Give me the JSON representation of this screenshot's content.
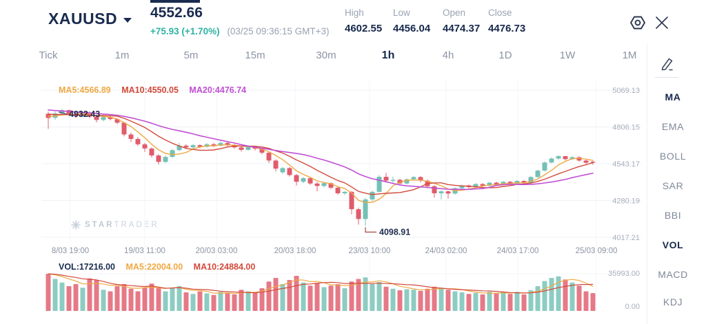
{
  "header": {
    "symbol": "XAUUSD",
    "price": "4552.66",
    "change": "+75.93 (+1.70%)",
    "timestamp": "(03/25 09:36:15 GMT+3)",
    "stats": [
      {
        "label": "High",
        "value": "4602.55"
      },
      {
        "label": "Low",
        "value": "4456.04"
      },
      {
        "label": "Open",
        "value": "4474.37"
      },
      {
        "label": "Close",
        "value": "4476.73"
      }
    ]
  },
  "timeframes": {
    "items": [
      "Tick",
      "1m",
      "5m",
      "15m",
      "30m",
      "1h",
      "4h",
      "1D",
      "1W",
      "1M"
    ],
    "selected": "1h"
  },
  "indicators": {
    "items": [
      "MA",
      "EMA",
      "BOLL",
      "SAR",
      "BBI",
      "VOL",
      "MACD",
      "KDJ"
    ],
    "selected": [
      "MA",
      "VOL"
    ]
  },
  "watermark": {
    "text_bold": "STAR",
    "text_light": "TRADER"
  },
  "chart_data": {
    "type": "candlestick",
    "symbol": "XAUUSD",
    "interval": "1h",
    "price_axis": {
      "labels": [
        "5069.13",
        "4806.15",
        "4543.17",
        "4280.19",
        "4017.21"
      ],
      "step": 262.98
    },
    "volume_axis": {
      "labels": [
        "35993.00",
        "0.00"
      ],
      "max": 35993
    },
    "x_axis": {
      "labels": [
        "8/03 19:00",
        "19/03 11:00",
        "20/03 03:00",
        "20/03 18:00",
        "23/03 10:00",
        "24/03 02:00",
        "24/03 17:00",
        "25/03 09:00"
      ]
    },
    "overlays": {
      "price_legend": [
        {
          "label": "MA5:4566.89",
          "color": "#efa843"
        },
        {
          "label": "MA10:4550.05",
          "color": "#d2493b"
        },
        {
          "label": "MA20:4476.74",
          "color": "#c14ed4"
        }
      ],
      "volume_legend": [
        {
          "label": "VOL:17216.00",
          "color": "#1a2b50"
        },
        {
          "label": "MA5:22004.00",
          "color": "#efa843"
        },
        {
          "label": "MA10:24884.00",
          "color": "#d2493b"
        }
      ]
    },
    "annotations": [
      {
        "text": "4932.43",
        "type": "high",
        "candle_index": 2
      },
      {
        "text": "4098.91",
        "type": "low",
        "candle_index": 46
      }
    ],
    "colors": {
      "up": "#74c1b5",
      "down": "#e05c6c",
      "ma5": "#efa843",
      "ma10": "#d2493b",
      "ma20": "#c14ed4"
    },
    "ma_warmup_slope": 6,
    "candles": [
      [
        4900,
        4915,
        4792,
        4870
      ],
      [
        4872,
        4916,
        4858,
        4902
      ],
      [
        4902,
        4932.43,
        4894,
        4926
      ],
      [
        4926,
        4930,
        4886,
        4898
      ],
      [
        4898,
        4908,
        4870,
        4884
      ],
      [
        4884,
        4914,
        4878,
        4908
      ],
      [
        4908,
        4918,
        4868,
        4880
      ],
      [
        4880,
        4890,
        4838,
        4856
      ],
      [
        4856,
        4882,
        4846,
        4876
      ],
      [
        4876,
        4884,
        4852,
        4862
      ],
      [
        4862,
        4870,
        4826,
        4836
      ],
      [
        4836,
        4842,
        4738,
        4752
      ],
      [
        4752,
        4766,
        4698,
        4720
      ],
      [
        4720,
        4734,
        4670,
        4682
      ],
      [
        4682,
        4692,
        4628,
        4652
      ],
      [
        4652,
        4660,
        4588,
        4602
      ],
      [
        4602,
        4612,
        4538,
        4556
      ],
      [
        4556,
        4602,
        4548,
        4592
      ],
      [
        4592,
        4648,
        4586,
        4640
      ],
      [
        4640,
        4692,
        4634,
        4672
      ],
      [
        4672,
        4682,
        4648,
        4660
      ],
      [
        4660,
        4684,
        4652,
        4676
      ],
      [
        4676,
        4682,
        4654,
        4664
      ],
      [
        4664,
        4690,
        4658,
        4682
      ],
      [
        4682,
        4692,
        4662,
        4672
      ],
      [
        4672,
        4702,
        4666,
        4692
      ],
      [
        4692,
        4698,
        4664,
        4676
      ],
      [
        4676,
        4684,
        4650,
        4660
      ],
      [
        4660,
        4668,
        4630,
        4642
      ],
      [
        4642,
        4672,
        4636,
        4664
      ],
      [
        4664,
        4670,
        4638,
        4650
      ],
      [
        4650,
        4656,
        4610,
        4622
      ],
      [
        4622,
        4630,
        4548,
        4566
      ],
      [
        4566,
        4574,
        4488,
        4508
      ],
      [
        4482,
        4520,
        4470,
        4512
      ],
      [
        4512,
        4520,
        4452,
        4462
      ],
      [
        4462,
        4470,
        4388,
        4414
      ],
      [
        4414,
        4448,
        4404,
        4440
      ],
      [
        4440,
        4446,
        4392,
        4402
      ],
      [
        4402,
        4412,
        4346,
        4384
      ],
      [
        4384,
        4410,
        4374,
        4404
      ],
      [
        4404,
        4410,
        4362,
        4372
      ],
      [
        4372,
        4378,
        4322,
        4332
      ],
      [
        4332,
        4348,
        4320,
        4342
      ],
      [
        4342,
        4348,
        4182,
        4218
      ],
      [
        4218,
        4230,
        4108,
        4148
      ],
      [
        4148,
        4300,
        4098.91,
        4288
      ],
      [
        4288,
        4350,
        4274,
        4342
      ],
      [
        4342,
        4462,
        4336,
        4450
      ],
      [
        4450,
        4478,
        4414,
        4422
      ],
      [
        4422,
        4450,
        4398,
        4428
      ],
      [
        4428,
        4436,
        4390,
        4402
      ],
      [
        4402,
        4438,
        4396,
        4432
      ],
      [
        4432,
        4456,
        4424,
        4448
      ],
      [
        4448,
        4454,
        4410,
        4422
      ],
      [
        4422,
        4430,
        4368,
        4382
      ],
      [
        4382,
        4390,
        4302,
        4332
      ],
      [
        4332,
        4352,
        4288,
        4346
      ],
      [
        4346,
        4352,
        4294,
        4330
      ],
      [
        4330,
        4374,
        4322,
        4368
      ],
      [
        4368,
        4394,
        4360,
        4388
      ],
      [
        4388,
        4394,
        4366,
        4376
      ],
      [
        4376,
        4404,
        4370,
        4398
      ],
      [
        4398,
        4404,
        4376,
        4386
      ],
      [
        4386,
        4414,
        4380,
        4408
      ],
      [
        4408,
        4414,
        4386,
        4396
      ],
      [
        4396,
        4420,
        4390,
        4414
      ],
      [
        4414,
        4420,
        4392,
        4400
      ],
      [
        4400,
        4426,
        4394,
        4420
      ],
      [
        4420,
        4426,
        4396,
        4406
      ],
      [
        4406,
        4454,
        4400,
        4448
      ],
      [
        4448,
        4500,
        4442,
        4494
      ],
      [
        4494,
        4560,
        4488,
        4552
      ],
      [
        4552,
        4588,
        4546,
        4580
      ],
      [
        4580,
        4602.55,
        4572,
        4598
      ],
      [
        4598,
        4598.5,
        4566,
        4576
      ],
      [
        4576,
        4596,
        4570,
        4590
      ],
      [
        4590,
        4596,
        4558,
        4566
      ],
      [
        4566,
        4572,
        4540,
        4550
      ],
      [
        4558,
        4564,
        4536,
        4552.66
      ]
    ],
    "volumes": [
      36000,
      31000,
      27500,
      24000,
      26000,
      22500,
      31500,
      30000,
      20500,
      19000,
      24000,
      26000,
      21500,
      19000,
      22500,
      26500,
      22000,
      19000,
      22000,
      24000,
      18000,
      16500,
      19000,
      17000,
      15500,
      18500,
      17000,
      16000,
      20500,
      19000,
      17500,
      22000,
      28500,
      32000,
      26000,
      30000,
      34000,
      27500,
      24500,
      27000,
      23000,
      24500,
      26000,
      22000,
      28500,
      31000,
      32500,
      26000,
      28000,
      23500,
      21500,
      20000,
      21000,
      20500,
      19500,
      21500,
      23500,
      22500,
      20500,
      19000,
      18000,
      16500,
      17500,
      16000,
      18500,
      17000,
      18500,
      16500,
      18500,
      16000,
      20000,
      24000,
      29000,
      32000,
      33500,
      30500,
      27500,
      24500,
      19000,
      17216
    ]
  }
}
